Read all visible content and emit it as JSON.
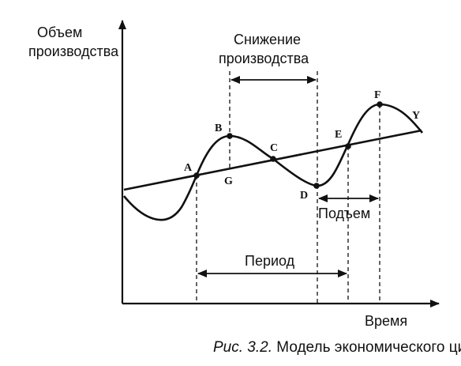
{
  "axes": {
    "y_label_line1": "Объем",
    "y_label_line2": "производства",
    "x_label": "Время"
  },
  "annotations": {
    "decline_line1": "Снижение",
    "decline_line2": "производства",
    "rise": "Подъем",
    "period": "Период"
  },
  "points": {
    "A": "A",
    "B": "B",
    "C": "C",
    "D": "D",
    "E": "E",
    "F": "F",
    "G": "G",
    "Y": "Y"
  },
  "caption": {
    "prefix": "Рис. 3.2.",
    "text": " Модель экономического цикла"
  },
  "colors": {
    "ink": "#111111",
    "background": "#ffffff"
  }
}
